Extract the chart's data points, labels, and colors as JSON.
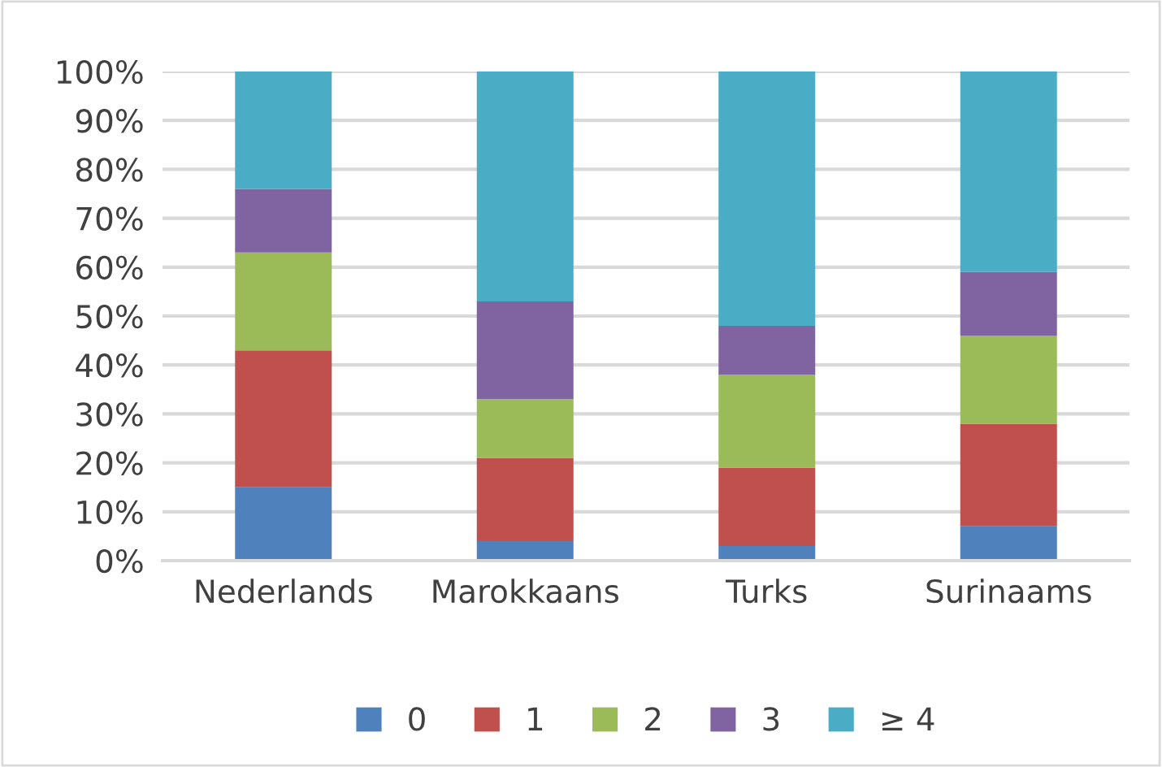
{
  "chart_data": {
    "type": "bar",
    "stacked": true,
    "categories": [
      "Nederlands",
      "Marokkaans",
      "Turks",
      "Surinaams"
    ],
    "series": [
      {
        "name": "0",
        "color": "#4f81bd",
        "values": [
          15,
          4,
          3,
          7
        ]
      },
      {
        "name": "1",
        "color": "#c0504d",
        "values": [
          28,
          17,
          16,
          21
        ]
      },
      {
        "name": "2",
        "color": "#9bbb59",
        "values": [
          20,
          12,
          19,
          18
        ]
      },
      {
        "name": "3",
        "color": "#8064a2",
        "values": [
          13,
          20,
          10,
          13
        ]
      },
      {
        "name": "≥ 4",
        "color": "#4bacc6",
        "values": [
          24,
          47,
          52,
          41
        ]
      }
    ],
    "ylim": [
      0,
      100
    ],
    "yticks": [
      {
        "value": 0,
        "label": "0%"
      },
      {
        "value": 10,
        "label": "10%"
      },
      {
        "value": 20,
        "label": "20%"
      },
      {
        "value": 30,
        "label": "30%"
      },
      {
        "value": 40,
        "label": "40%"
      },
      {
        "value": 50,
        "label": "50%"
      },
      {
        "value": 60,
        "label": "60%"
      },
      {
        "value": 70,
        "label": "70%"
      },
      {
        "value": 80,
        "label": "80%"
      },
      {
        "value": 90,
        "label": "90%"
      },
      {
        "value": 100,
        "label": "100%"
      }
    ],
    "grid": "y",
    "legend": "bottom"
  }
}
